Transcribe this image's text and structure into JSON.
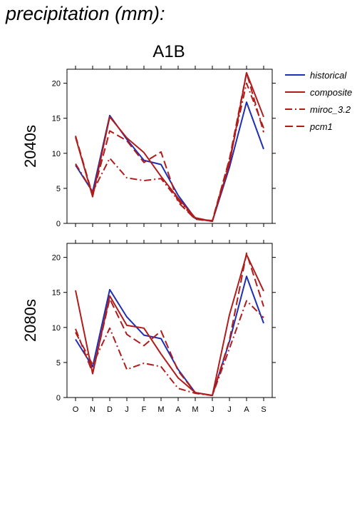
{
  "page_title": "precipitation (mm):",
  "chart_data": {
    "type": "line",
    "title": "A1B",
    "categories": [
      "O",
      "N",
      "D",
      "J",
      "F",
      "M",
      "A",
      "M",
      "J",
      "J",
      "A",
      "S"
    ],
    "ylim": [
      0,
      22
    ],
    "yticks": [
      0,
      5,
      10,
      15,
      20
    ],
    "legend": {
      "placement": "top-right",
      "entries": [
        "historical",
        "composite",
        "miroc_3.2",
        "pcm1"
      ]
    },
    "series_styles": {
      "historical": {
        "color": "#1f2fb4",
        "dash": "solid"
      },
      "composite": {
        "color": "#b01c1c",
        "dash": "solid"
      },
      "miroc_3.2": {
        "color": "#b01c1c",
        "dash": "dashdot"
      },
      "pcm1": {
        "color": "#b01c1c",
        "dash": "dashed"
      }
    },
    "panels": [
      {
        "label": "2040s",
        "series": [
          {
            "name": "historical",
            "values": [
              8.3,
              4.5,
              15.4,
              12.0,
              9.0,
              8.4,
              4.0,
              0.7,
              0.3,
              8.0,
              17.3,
              10.6
            ]
          },
          {
            "name": "composite",
            "values": [
              12.3,
              3.8,
              15.2,
              12.2,
              10.1,
              6.7,
              3.6,
              0.8,
              0.3,
              8.5,
              21.5,
              15.2
            ]
          },
          {
            "name": "miroc_3.2",
            "values": [
              8.5,
              4.5,
              9.3,
              6.5,
              6.1,
              6.4,
              3.3,
              0.6,
              0.3,
              9.0,
              20.0,
              13.6
            ]
          },
          {
            "name": "pcm1",
            "values": [
              12.5,
              4.0,
              13.2,
              11.8,
              8.7,
              10.2,
              3.0,
              0.6,
              0.4,
              9.2,
              21.5,
              13.0
            ]
          }
        ]
      },
      {
        "label": "2080s",
        "series": [
          {
            "name": "historical",
            "values": [
              8.3,
              4.4,
              15.4,
              11.5,
              8.9,
              8.4,
              4.0,
              0.7,
              0.3,
              8.0,
              17.3,
              10.6
            ]
          },
          {
            "name": "composite",
            "values": [
              15.3,
              3.4,
              14.5,
              10.3,
              9.9,
              6.2,
              2.8,
              0.7,
              0.3,
              11.8,
              20.4,
              15.2
            ]
          },
          {
            "name": "miroc_3.2",
            "values": [
              9.3,
              4.7,
              9.9,
              4.0,
              4.9,
              4.4,
              1.3,
              0.6,
              0.3,
              7.0,
              13.8,
              11.4
            ]
          },
          {
            "name": "pcm1",
            "values": [
              9.8,
              3.5,
              14.1,
              9.0,
              7.4,
              9.5,
              3.8,
              0.7,
              0.3,
              8.2,
              20.6,
              13.0
            ]
          }
        ]
      }
    ]
  }
}
